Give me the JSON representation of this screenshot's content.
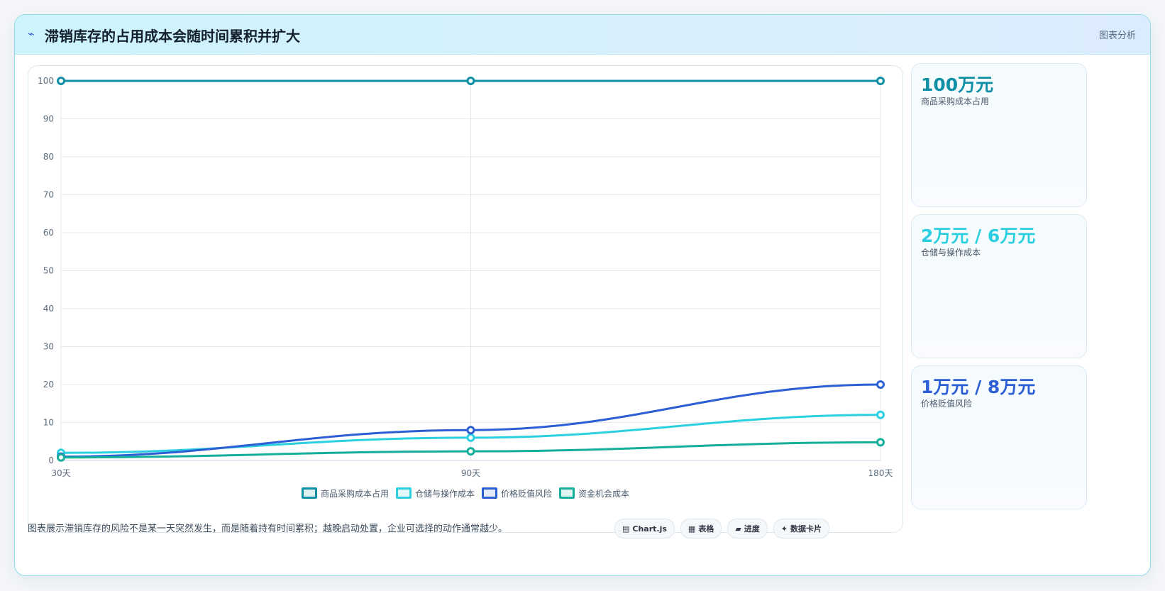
{
  "header": {
    "icon": "⌁",
    "title": "滞销库存的占用成本会随时间累积并扩大",
    "tag": "图表分析"
  },
  "chart_data": {
    "type": "line",
    "categories": [
      "30天",
      "90天",
      "180天"
    ],
    "ylim": [
      0,
      100
    ],
    "yticks": [
      0,
      10,
      20,
      30,
      40,
      50,
      60,
      70,
      80,
      90,
      100
    ],
    "grid": true,
    "legend_position": "bottom",
    "series": [
      {
        "name": "商品采购成本占用",
        "values": [
          100,
          100,
          100
        ],
        "color": "#0e8fa6"
      },
      {
        "name": "仓储与操作成本",
        "values": [
          2,
          6,
          12
        ],
        "color": "#2ccfe0"
      },
      {
        "name": "价格贬值风险",
        "values": [
          1,
          8,
          20
        ],
        "color": "#2d5fd4"
      },
      {
        "name": "资金机会成本",
        "values": [
          0.8,
          2.4,
          4.8
        ],
        "color": "#14ae9a"
      }
    ]
  },
  "stats": [
    {
      "value": "100万元",
      "label": "商品采购成本占用",
      "color": "#0e8fa6"
    },
    {
      "value": "2万元 / 6万元",
      "label": "仓储与操作成本",
      "color": "#2ccfe0"
    },
    {
      "value": "1万元 / 8万元",
      "label": "价格贬值风险",
      "color": "#2d5fd4"
    }
  ],
  "footer": {
    "text": "图表展示滞销库存的风险不是某一天突然发生，而是随着持有时间累积；越晚启动处置，企业可选择的动作通常越少。",
    "pills": [
      {
        "icon": "▤",
        "label": "Chart.js"
      },
      {
        "icon": "▦",
        "label": "表格"
      },
      {
        "icon": "▰",
        "label": "进度"
      },
      {
        "icon": "✦",
        "label": "数据卡片"
      }
    ]
  }
}
